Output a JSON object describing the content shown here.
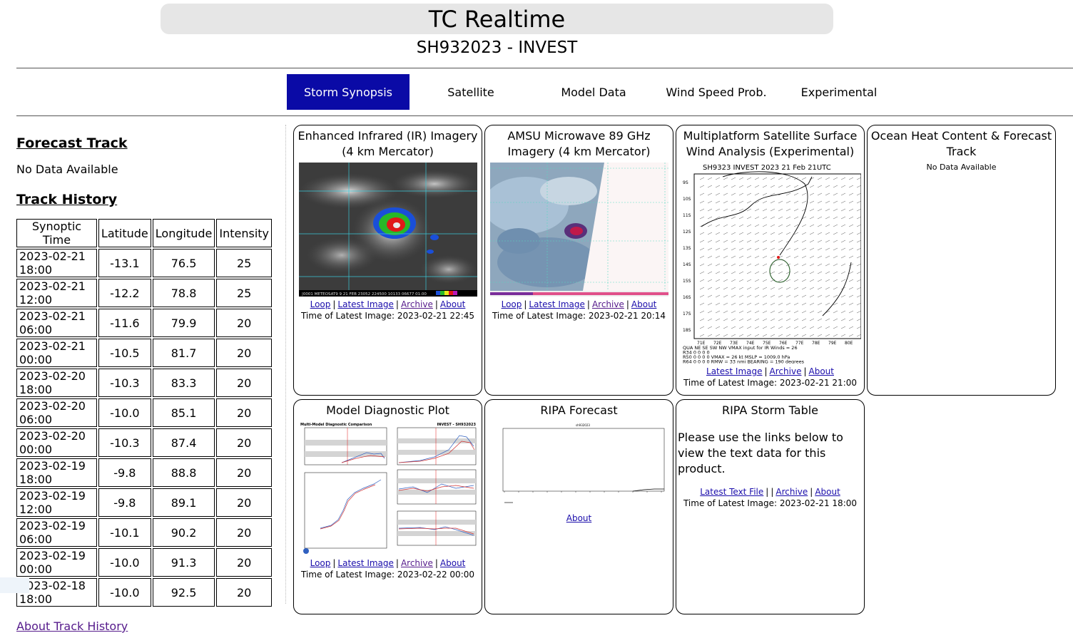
{
  "header": {
    "title": "TC Realtime",
    "storm": "SH932023 - INVEST"
  },
  "tabs": [
    {
      "label": "Storm Synopsis",
      "active": true
    },
    {
      "label": "Satellite"
    },
    {
      "label": "Model Data"
    },
    {
      "label": "Wind Speed Prob."
    },
    {
      "label": "Experimental"
    }
  ],
  "left": {
    "forecast_heading": "Forecast Track",
    "forecast_nodata": "No Data Available",
    "history_heading": "Track History",
    "table_headers": [
      "Synoptic Time",
      "Latitude",
      "Longitude",
      "Intensity"
    ],
    "rows": [
      [
        "2023-02-21 18:00",
        "-13.1",
        "76.5",
        "25"
      ],
      [
        "2023-02-21 12:00",
        "-12.2",
        "78.8",
        "25"
      ],
      [
        "2023-02-21 06:00",
        "-11.6",
        "79.9",
        "20"
      ],
      [
        "2023-02-21 00:00",
        "-10.5",
        "81.7",
        "20"
      ],
      [
        "2023-02-20 18:00",
        "-10.3",
        "83.3",
        "20"
      ],
      [
        "2023-02-20 06:00",
        "-10.0",
        "85.1",
        "20"
      ],
      [
        "2023-02-20 00:00",
        "-10.3",
        "87.4",
        "20"
      ],
      [
        "2023-02-19 18:00",
        "-9.8",
        "88.8",
        "20"
      ],
      [
        "2023-02-19 12:00",
        "-9.8",
        "89.1",
        "20"
      ],
      [
        "2023-02-19 06:00",
        "-10.1",
        "90.2",
        "20"
      ],
      [
        "2023-02-19 00:00",
        "-10.0",
        "91.3",
        "20"
      ],
      [
        "2023-02-18 18:00",
        "-10.0",
        "92.5",
        "20"
      ]
    ],
    "about_link": "About Track History"
  },
  "cards": {
    "ir": {
      "title": "Enhanced Infrared (IR) Imagery (4 km Mercator)",
      "links": [
        "Loop",
        "Latest Image",
        "Archive",
        "About"
      ],
      "latest": "Time of Latest Image: 2023-02-21 22:45",
      "image_caption": "|0001 METEOSAT9   9 21 FEB 23052 224500 10133 06677 01.00"
    },
    "amsu": {
      "title": "AMSU Microwave 89 GHz Imagery (4 km Mercator)",
      "links": [
        "Loop",
        "Latest Image",
        "Archive",
        "About"
      ],
      "latest": "Time of Latest Image: 2023-02-21 20:14"
    },
    "wind": {
      "title": "Multiplatform Satellite Surface Wind Analysis (Experimental)",
      "links": [
        "Latest Image",
        "Archive",
        "About"
      ],
      "latest": "Time of Latest Image: 2023-02-21 21:00",
      "plot_header": "SH9323    INVEST    2023 21 Feb 21UTC",
      "plot_footer": [
        "QUA  NE  SE  SW  NW  VMAX input for IR Winds =  26",
        "R34   0   0   0   0",
        "R50   0   0   0   0   VMAX =  26 kt MSLP = 1009.0 hPa",
        "R64   0   0   0   0   RMW =  33 nmi BEARING = 190 degrees"
      ],
      "y_ticks": [
        "9S",
        "10S",
        "11S",
        "12S",
        "13S",
        "14S",
        "15S",
        "16S",
        "17S",
        "18S"
      ],
      "x_ticks": [
        "71E",
        "72E",
        "73E",
        "74E",
        "75E",
        "76E",
        "77E",
        "78E",
        "79E",
        "80E"
      ]
    },
    "ohc": {
      "title": "Ocean Heat Content & Forecast Track",
      "nodata": "No Data Available"
    },
    "model": {
      "title": "Model Diagnostic Plot",
      "links": [
        "Loop",
        "Latest Image",
        "Archive",
        "About"
      ],
      "latest": "Time of Latest Image: 2023-02-22 00:00",
      "plot_title_left": "Multi-Model Diagnostic Comparison",
      "plot_title_right": "INVEST - SH932023"
    },
    "ripa": {
      "title": "RIPA Forecast",
      "about": "About",
      "plot_title": "sh932023"
    },
    "ripa_table": {
      "title": "RIPA Storm Table",
      "text": "Please use the links below to view the text data for this product.",
      "links": [
        "Latest Text File",
        "Archive",
        "About"
      ],
      "latest": "Time of Latest Image: 2023-02-21 18:00"
    }
  },
  "colors": {
    "tab_active": "#0a0aa6",
    "link": "#1a0dab",
    "visited": "#551a8b"
  }
}
